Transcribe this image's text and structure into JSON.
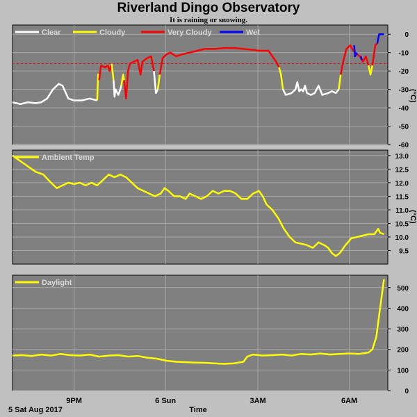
{
  "header": {
    "title": "Riverland Dingo Observatory",
    "subtitle": "It is raining or snowing."
  },
  "footer": {
    "date_label": "5 Sat Aug 2017",
    "time_label": "Time"
  },
  "x_ticks": [
    "9PM",
    "6 Sun",
    "3AM",
    "6AM"
  ],
  "colors": {
    "background": "#c0c0c0",
    "plot": "#808080",
    "clear": "#ffffff",
    "cloudy": "#ffff00",
    "very_cloudy": "#ff0000",
    "wet": "#0000ff",
    "threshold": "#ff0000"
  },
  "chart_data": [
    {
      "type": "line",
      "name": "cloud-sky-temp",
      "ylim": [
        -60,
        5
      ],
      "yticks": [
        0,
        -10,
        -20,
        -30,
        -40,
        -50,
        -60
      ],
      "unit": "(°C)",
      "threshold": -16,
      "legend": [
        "Clear",
        "Cloudy",
        "Very Cloudy",
        "Wet"
      ],
      "segments": [
        {
          "cat": "clear",
          "points": [
            [
              0.0,
              -37
            ],
            [
              0.4,
              -38
            ],
            [
              0.8,
              -37
            ],
            [
              1.2,
              -37.5
            ],
            [
              1.5,
              -37
            ],
            [
              1.8,
              -35
            ],
            [
              2.1,
              -30
            ],
            [
              2.4,
              -27
            ],
            [
              2.6,
              -28
            ],
            [
              2.9,
              -35
            ],
            [
              3.2,
              -36
            ],
            [
              3.6,
              -36
            ],
            [
              4.0,
              -35
            ],
            [
              4.4,
              -36
            ]
          ]
        },
        {
          "cat": "cloudy",
          "points": [
            [
              4.4,
              -36
            ],
            [
              4.45,
              -22
            ],
            [
              4.5,
              -25
            ]
          ]
        },
        {
          "cat": "very_cloudy",
          "points": [
            [
              4.5,
              -25
            ],
            [
              4.6,
              -17
            ],
            [
              4.8,
              -18
            ],
            [
              4.95,
              -17
            ],
            [
              5.05,
              -20
            ],
            [
              5.15,
              -16
            ]
          ]
        },
        {
          "cat": "cloudy",
          "points": [
            [
              5.15,
              -16
            ],
            [
              5.25,
              -25
            ]
          ]
        },
        {
          "cat": "clear",
          "points": [
            [
              5.25,
              -25
            ],
            [
              5.3,
              -34
            ],
            [
              5.35,
              -30
            ],
            [
              5.5,
              -33
            ],
            [
              5.6,
              -30
            ],
            [
              5.65,
              -28
            ]
          ]
        },
        {
          "cat": "cloudy",
          "points": [
            [
              5.65,
              -28
            ],
            [
              5.75,
              -22
            ],
            [
              5.8,
              -25
            ]
          ]
        },
        {
          "cat": "very_cloudy",
          "points": [
            [
              5.8,
              -25
            ],
            [
              5.9,
              -35
            ],
            [
              6.0,
              -20
            ],
            [
              6.1,
              -16
            ],
            [
              6.3,
              -15
            ],
            [
              6.5,
              -14
            ],
            [
              6.65,
              -22
            ],
            [
              6.75,
              -15
            ],
            [
              7.0,
              -13
            ],
            [
              7.2,
              -12
            ],
            [
              7.35,
              -20
            ]
          ]
        },
        {
          "cat": "clear",
          "points": [
            [
              7.35,
              -20
            ],
            [
              7.45,
              -32
            ],
            [
              7.55,
              -30
            ]
          ]
        },
        {
          "cat": "cloudy",
          "points": [
            [
              7.55,
              -30
            ],
            [
              7.65,
              -22
            ]
          ]
        },
        {
          "cat": "very_cloudy",
          "points": [
            [
              7.65,
              -22
            ],
            [
              7.8,
              -13
            ],
            [
              8.0,
              -11
            ],
            [
              8.2,
              -10
            ],
            [
              8.5,
              -12
            ],
            [
              8.8,
              -11
            ],
            [
              9.2,
              -10
            ],
            [
              9.6,
              -9
            ],
            [
              10.0,
              -8
            ],
            [
              10.5,
              -8
            ],
            [
              11.0,
              -7.5
            ],
            [
              11.5,
              -7.5
            ],
            [
              12.0,
              -8
            ],
            [
              12.5,
              -8.5
            ],
            [
              12.8,
              -9
            ],
            [
              13.0,
              -9
            ],
            [
              13.3,
              -9
            ],
            [
              13.5,
              -12
            ],
            [
              13.7,
              -15
            ],
            [
              13.85,
              -18
            ]
          ]
        },
        {
          "cat": "cloudy",
          "points": [
            [
              13.85,
              -18
            ],
            [
              13.95,
              -22
            ],
            [
              14.05,
              -30
            ]
          ]
        },
        {
          "cat": "clear",
          "points": [
            [
              14.05,
              -30
            ],
            [
              14.2,
              -33
            ],
            [
              14.5,
              -32
            ],
            [
              14.7,
              -30
            ],
            [
              14.8,
              -26
            ],
            [
              14.9,
              -31
            ],
            [
              15.0,
              -30
            ],
            [
              15.1,
              -31
            ],
            [
              15.2,
              -28
            ],
            [
              15.3,
              -32
            ],
            [
              15.5,
              -33
            ],
            [
              15.7,
              -32
            ],
            [
              15.9,
              -28
            ],
            [
              16.1,
              -33
            ],
            [
              16.4,
              -32
            ],
            [
              16.6,
              -31
            ],
            [
              16.8,
              -32
            ],
            [
              16.95,
              -30
            ]
          ]
        },
        {
          "cat": "cloudy",
          "points": [
            [
              16.95,
              -30
            ],
            [
              17.05,
              -22
            ]
          ]
        },
        {
          "cat": "very_cloudy",
          "points": [
            [
              17.05,
              -22
            ],
            [
              17.2,
              -14
            ],
            [
              17.35,
              -8
            ],
            [
              17.55,
              -6
            ],
            [
              17.7,
              -9
            ],
            [
              17.9,
              -11
            ],
            [
              18.05,
              -12
            ],
            [
              18.2,
              -15
            ],
            [
              18.35,
              -12
            ],
            [
              18.5,
              -17
            ]
          ]
        },
        {
          "cat": "cloudy",
          "points": [
            [
              18.5,
              -17
            ],
            [
              18.6,
              -22
            ],
            [
              18.7,
              -17
            ]
          ]
        },
        {
          "cat": "very_cloudy",
          "points": [
            [
              18.7,
              -17
            ],
            [
              18.85,
              -6
            ],
            [
              18.95,
              -5
            ]
          ]
        },
        {
          "cat": "wet",
          "points": [
            [
              18.95,
              -5
            ],
            [
              19.05,
              0
            ],
            [
              19.3,
              0
            ]
          ]
        },
        {
          "cat": "wet",
          "points": [
            [
              17.75,
              -6
            ],
            [
              17.8,
              -12
            ],
            [
              17.9,
              -10
            ]
          ]
        },
        {
          "cat": "wet",
          "points": [
            [
              18.1,
              -12
            ],
            [
              18.15,
              -14
            ]
          ]
        }
      ]
    },
    {
      "type": "line",
      "name": "ambient-temp",
      "series": [
        {
          "name": "Ambient Temp"
        }
      ],
      "ylim": [
        9.0,
        13.2
      ],
      "yticks": [
        13.0,
        12.5,
        12.0,
        11.5,
        11.0,
        10.5,
        10.0,
        9.5
      ],
      "unit": "(°C)",
      "points": [
        [
          0.0,
          13.0
        ],
        [
          0.4,
          12.8
        ],
        [
          0.8,
          12.6
        ],
        [
          1.2,
          12.4
        ],
        [
          1.6,
          12.3
        ],
        [
          2.0,
          12.0
        ],
        [
          2.3,
          11.8
        ],
        [
          2.6,
          11.9
        ],
        [
          2.9,
          12.0
        ],
        [
          3.2,
          11.95
        ],
        [
          3.5,
          12.0
        ],
        [
          3.8,
          11.9
        ],
        [
          4.1,
          12.0
        ],
        [
          4.4,
          11.9
        ],
        [
          4.7,
          12.1
        ],
        [
          5.0,
          12.3
        ],
        [
          5.3,
          12.2
        ],
        [
          5.6,
          12.3
        ],
        [
          5.9,
          12.2
        ],
        [
          6.2,
          12.0
        ],
        [
          6.5,
          11.8
        ],
        [
          6.8,
          11.7
        ],
        [
          7.1,
          11.6
        ],
        [
          7.4,
          11.5
        ],
        [
          7.7,
          11.6
        ],
        [
          7.9,
          11.8
        ],
        [
          8.1,
          11.7
        ],
        [
          8.4,
          11.5
        ],
        [
          8.7,
          11.5
        ],
        [
          9.0,
          11.4
        ],
        [
          9.2,
          11.6
        ],
        [
          9.5,
          11.5
        ],
        [
          9.8,
          11.4
        ],
        [
          10.1,
          11.5
        ],
        [
          10.4,
          11.7
        ],
        [
          10.7,
          11.6
        ],
        [
          11.0,
          11.7
        ],
        [
          11.3,
          11.7
        ],
        [
          11.6,
          11.6
        ],
        [
          11.9,
          11.4
        ],
        [
          12.2,
          11.4
        ],
        [
          12.5,
          11.6
        ],
        [
          12.8,
          11.7
        ],
        [
          13.0,
          11.5
        ],
        [
          13.2,
          11.2
        ],
        [
          13.5,
          11.0
        ],
        [
          13.8,
          10.7
        ],
        [
          14.1,
          10.3
        ],
        [
          14.4,
          10.0
        ],
        [
          14.7,
          9.8
        ],
        [
          15.0,
          9.75
        ],
        [
          15.3,
          9.7
        ],
        [
          15.6,
          9.6
        ],
        [
          15.9,
          9.8
        ],
        [
          16.2,
          9.7
        ],
        [
          16.4,
          9.6
        ],
        [
          16.6,
          9.4
        ],
        [
          16.8,
          9.3
        ],
        [
          17.0,
          9.4
        ],
        [
          17.3,
          9.7
        ],
        [
          17.6,
          9.95
        ],
        [
          17.9,
          10.0
        ],
        [
          18.2,
          10.05
        ],
        [
          18.5,
          10.1
        ],
        [
          18.8,
          10.1
        ],
        [
          19.0,
          10.3
        ],
        [
          19.1,
          10.15
        ],
        [
          19.3,
          10.1
        ]
      ]
    },
    {
      "type": "line",
      "name": "daylight",
      "series": [
        {
          "name": "Daylight"
        }
      ],
      "ylim": [
        0,
        560
      ],
      "yticks": [
        500,
        400,
        300,
        200,
        100,
        0
      ],
      "points": [
        [
          0.0,
          170
        ],
        [
          0.5,
          172
        ],
        [
          1.0,
          168
        ],
        [
          1.5,
          175
        ],
        [
          2.0,
          170
        ],
        [
          2.5,
          178
        ],
        [
          3.0,
          172
        ],
        [
          3.5,
          170
        ],
        [
          4.0,
          175
        ],
        [
          4.5,
          165
        ],
        [
          5.0,
          170
        ],
        [
          5.5,
          172
        ],
        [
          6.0,
          165
        ],
        [
          6.5,
          168
        ],
        [
          7.0,
          160
        ],
        [
          7.5,
          155
        ],
        [
          8.0,
          145
        ],
        [
          8.5,
          140
        ],
        [
          9.0,
          138
        ],
        [
          9.5,
          136
        ],
        [
          10.0,
          135
        ],
        [
          10.5,
          132
        ],
        [
          11.0,
          130
        ],
        [
          11.5,
          132
        ],
        [
          12.0,
          140
        ],
        [
          12.2,
          165
        ],
        [
          12.5,
          175
        ],
        [
          13.0,
          170
        ],
        [
          13.5,
          172
        ],
        [
          14.0,
          175
        ],
        [
          14.5,
          170
        ],
        [
          15.0,
          178
        ],
        [
          15.5,
          175
        ],
        [
          16.0,
          180
        ],
        [
          16.5,
          175
        ],
        [
          17.0,
          178
        ],
        [
          17.5,
          180
        ],
        [
          18.0,
          178
        ],
        [
          18.3,
          182
        ],
        [
          18.5,
          185
        ],
        [
          18.7,
          200
        ],
        [
          18.9,
          260
        ],
        [
          19.1,
          400
        ],
        [
          19.3,
          540
        ]
      ]
    }
  ]
}
